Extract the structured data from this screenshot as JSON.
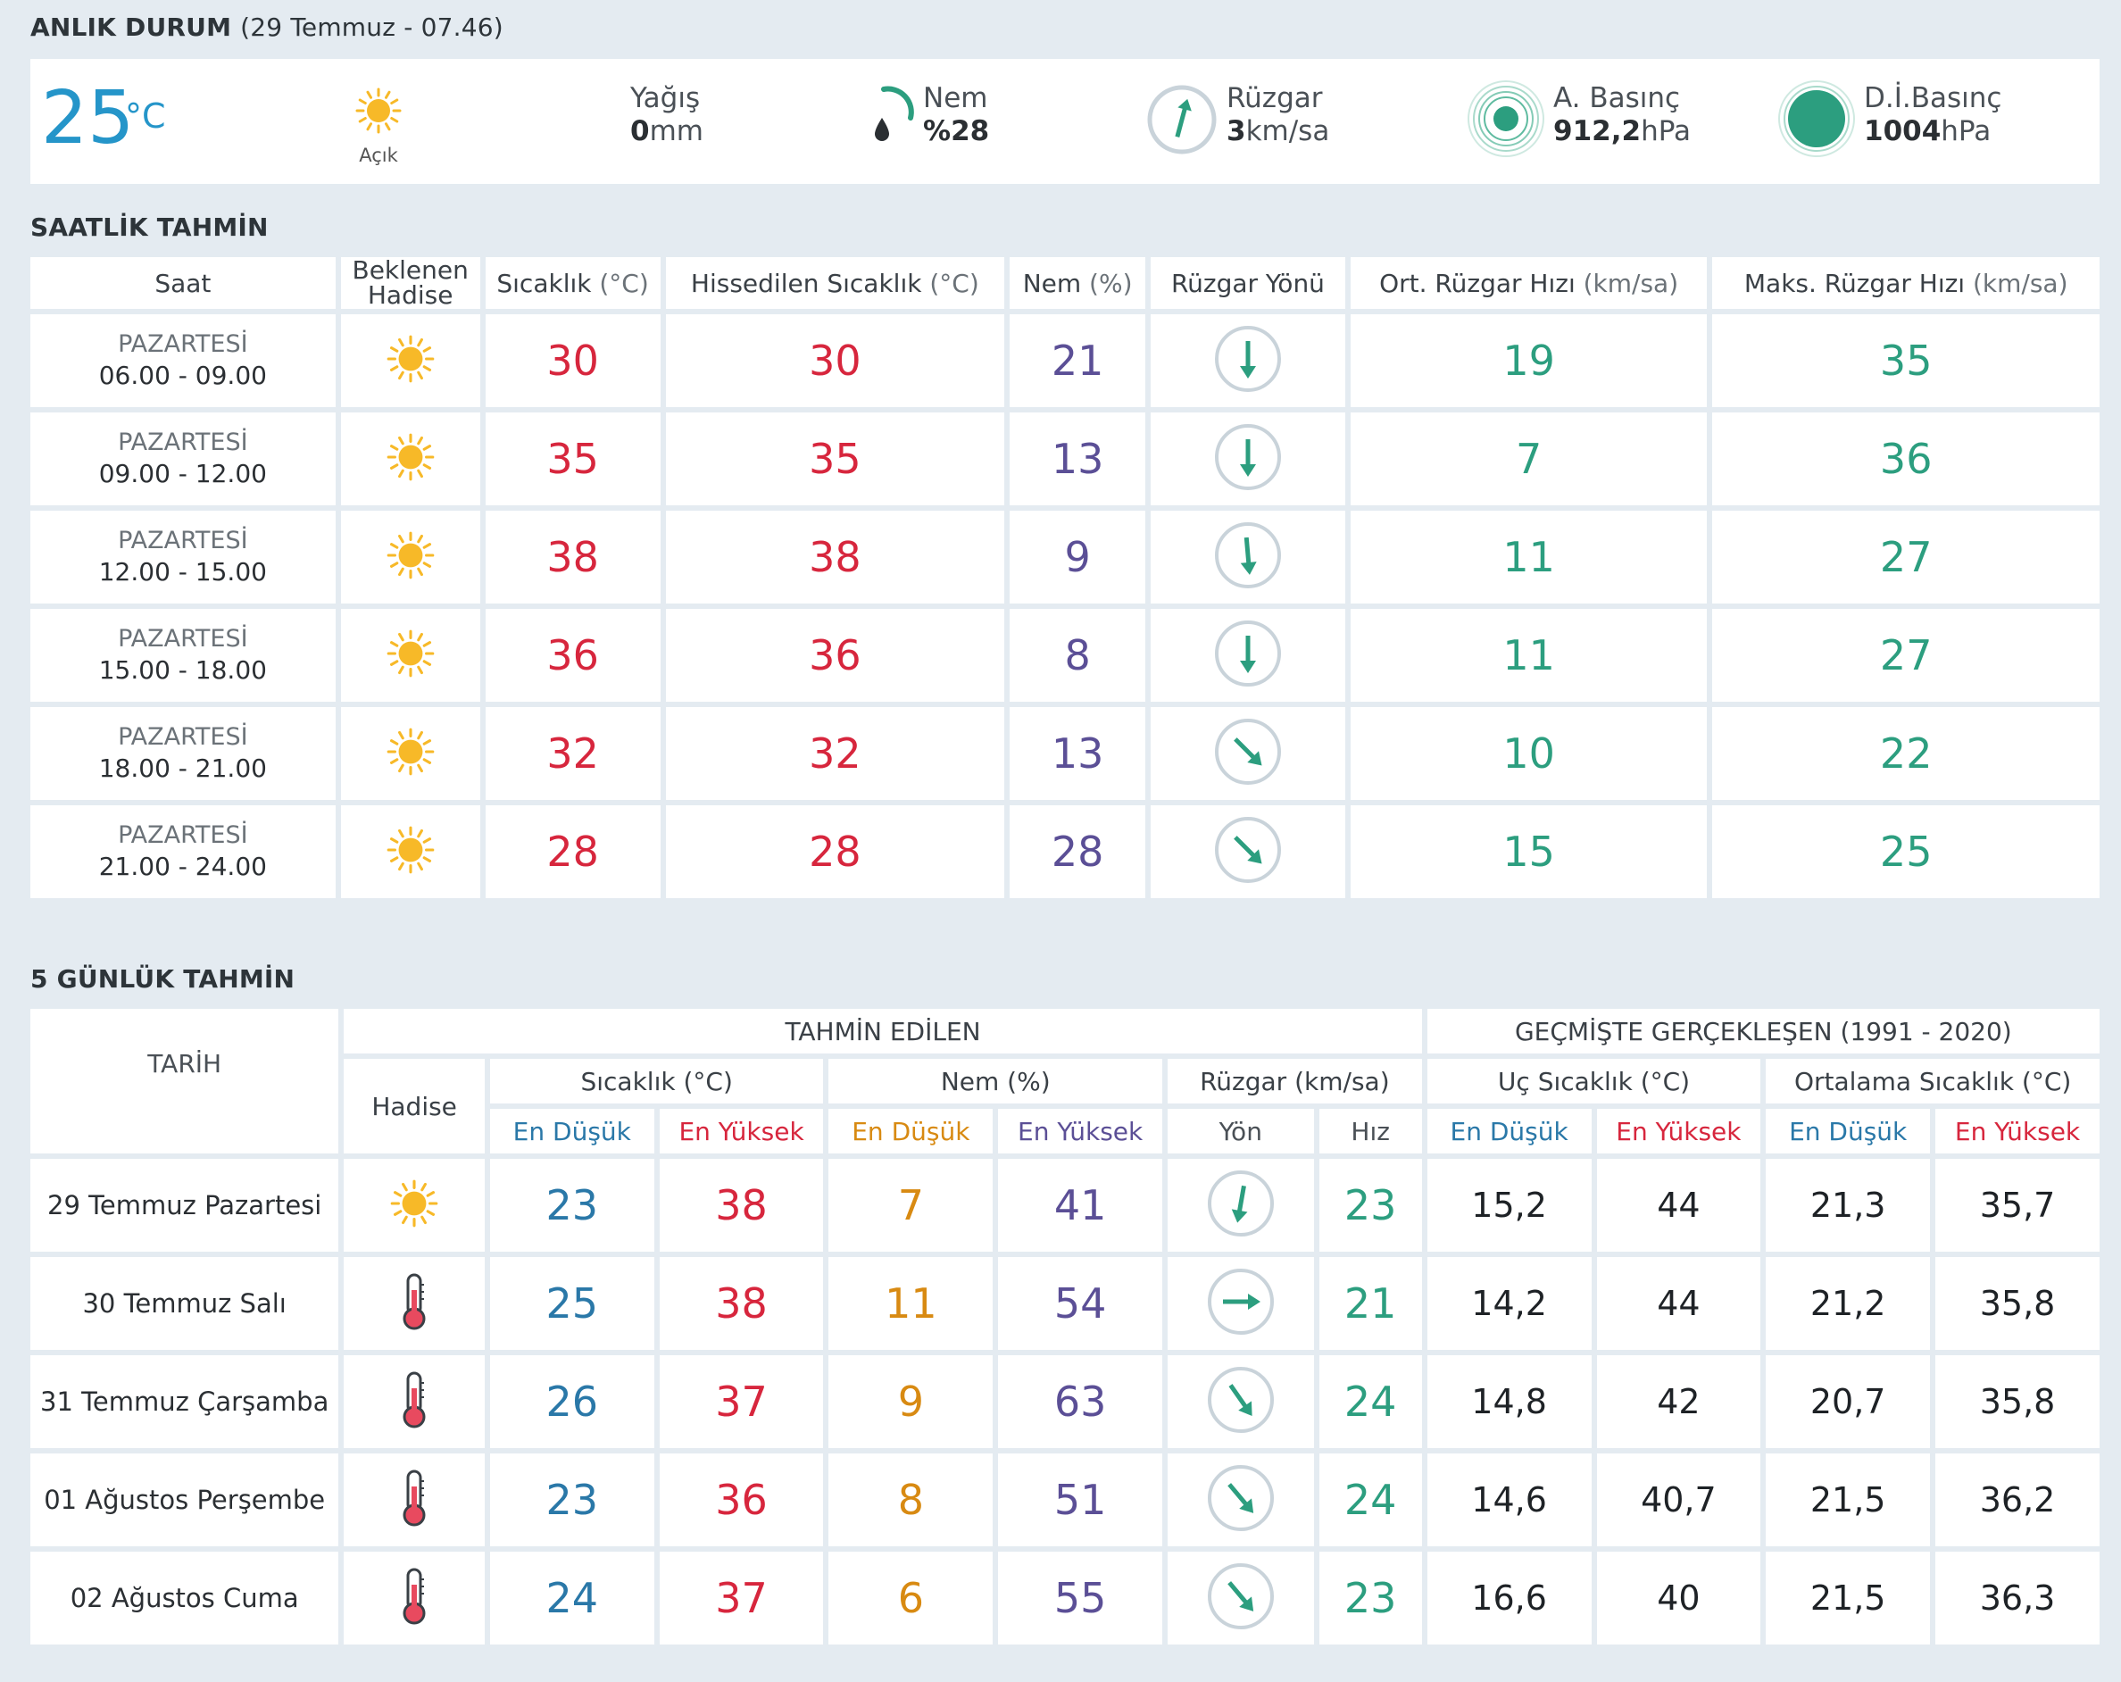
{
  "now": {
    "title": "ANLIK DURUM",
    "datetime": "(29 Temmuz - 07.46)",
    "temp": "25",
    "temp_unit": "°C",
    "condition": "Açık",
    "condition_icon": "sun-icon",
    "rain_label": "Yağış",
    "rain_value": "0",
    "rain_unit": "mm",
    "humidity_label": "Nem",
    "humidity_prefix": "%",
    "humidity_value": "28",
    "wind_label": "Rüzgar",
    "wind_value": "3",
    "wind_unit": "km/sa",
    "pressure_a_label": "A. Basınç",
    "pressure_a_value": "912,2",
    "pressure_a_unit": "hPa",
    "pressure_d_label": "D.İ.Basınç",
    "pressure_d_value": "1004",
    "pressure_d_unit": "hPa"
  },
  "hourly": {
    "title": "SAATLİK TAHMİN",
    "headers": {
      "time": "Saat",
      "event": "Beklenen Hadise",
      "temp": "Sıcaklık",
      "temp_unit": "(°C)",
      "feels": "Hissedilen Sıcaklık",
      "feels_unit": "(°C)",
      "humidity": "Nem",
      "humidity_unit": "(%)",
      "wind_dir": "Rüzgar Yönü",
      "wind_avg": "Ort. Rüzgar Hızı",
      "wind_avg_unit": "(km/sa)",
      "wind_max": "Maks. Rüzgar Hızı",
      "wind_max_unit": "(km/sa)"
    },
    "rows": [
      {
        "day": "PAZARTESİ",
        "time": "06.00 - 09.00",
        "icon": "sun-icon",
        "temp": "30",
        "feels": "30",
        "humidity": "21",
        "wind_dir_deg": 180,
        "wind_avg": "19",
        "wind_max": "35"
      },
      {
        "day": "PAZARTESİ",
        "time": "09.00 - 12.00",
        "icon": "sun-icon",
        "temp": "35",
        "feels": "35",
        "humidity": "13",
        "wind_dir_deg": 180,
        "wind_avg": "7",
        "wind_max": "36"
      },
      {
        "day": "PAZARTESİ",
        "time": "12.00 - 15.00",
        "icon": "sun-icon",
        "temp": "38",
        "feels": "38",
        "humidity": "9",
        "wind_dir_deg": 175,
        "wind_avg": "11",
        "wind_max": "27"
      },
      {
        "day": "PAZARTESİ",
        "time": "15.00 - 18.00",
        "icon": "sun-icon",
        "temp": "36",
        "feels": "36",
        "humidity": "8",
        "wind_dir_deg": 180,
        "wind_avg": "11",
        "wind_max": "27"
      },
      {
        "day": "PAZARTESİ",
        "time": "18.00 - 21.00",
        "icon": "sun-icon",
        "temp": "32",
        "feels": "32",
        "humidity": "13",
        "wind_dir_deg": 135,
        "wind_avg": "10",
        "wind_max": "22"
      },
      {
        "day": "PAZARTESİ",
        "time": "21.00 - 24.00",
        "icon": "sun-icon",
        "temp": "28",
        "feels": "28",
        "humidity": "28",
        "wind_dir_deg": 135,
        "wind_avg": "15",
        "wind_max": "25"
      }
    ]
  },
  "daily": {
    "title": "5 GÜNLÜK TAHMİN",
    "headers": {
      "date": "TARİH",
      "forecast": "TAHMİN EDİLEN",
      "history": "GEÇMİŞTE GERÇEKLEŞEN (1991 - 2020)",
      "event": "Hadise",
      "temp": "Sıcaklık (°C)",
      "humidity": "Nem (%)",
      "wind": "Rüzgar (km/sa)",
      "extreme": "Uç Sıcaklık (°C)",
      "average": "Ortalama Sıcaklık (°C)",
      "min": "En Düşük",
      "max": "En Yüksek",
      "dir": "Yön",
      "speed": "Hız"
    },
    "rows": [
      {
        "date": "29 Temmuz Pazartesi",
        "icon": "sun-icon",
        "t_min": "23",
        "t_max": "38",
        "h_min": "7",
        "h_max": "41",
        "wind_dir_deg": 190,
        "wind_speed": "23",
        "ext_min": "15,2",
        "ext_max": "44",
        "avg_min": "21,3",
        "avg_max": "35,7"
      },
      {
        "date": "30 Temmuz Salı",
        "icon": "thermometer-icon",
        "t_min": "25",
        "t_max": "38",
        "h_min": "11",
        "h_max": "54",
        "wind_dir_deg": 90,
        "wind_speed": "21",
        "ext_min": "14,2",
        "ext_max": "44",
        "avg_min": "21,2",
        "avg_max": "35,8"
      },
      {
        "date": "31 Temmuz Çarşamba",
        "icon": "thermometer-icon",
        "t_min": "26",
        "t_max": "37",
        "h_min": "9",
        "h_max": "63",
        "wind_dir_deg": 145,
        "wind_speed": "24",
        "ext_min": "14,8",
        "ext_max": "42",
        "avg_min": "20,7",
        "avg_max": "35,8"
      },
      {
        "date": "01 Ağustos Perşembe",
        "icon": "thermometer-icon",
        "t_min": "23",
        "t_max": "36",
        "h_min": "8",
        "h_max": "51",
        "wind_dir_deg": 140,
        "wind_speed": "24",
        "ext_min": "14,6",
        "ext_max": "40,7",
        "avg_min": "21,5",
        "avg_max": "36,2"
      },
      {
        "date": "02 Ağustos Cuma",
        "icon": "thermometer-icon",
        "t_min": "24",
        "t_max": "37",
        "h_min": "6",
        "h_max": "55",
        "wind_dir_deg": 140,
        "wind_speed": "23",
        "ext_min": "16,6",
        "ext_max": "40",
        "avg_min": "21,5",
        "avg_max": "36,3"
      }
    ]
  },
  "colors": {
    "accent_blue": "#2595c9",
    "temp_red": "#d7263d",
    "humidity_purple": "#5b4f96",
    "wind_green": "#2c9e7f",
    "min_blue": "#2a78a8",
    "min_orange": "#d88a12",
    "sun_yellow": "#f7b928"
  }
}
